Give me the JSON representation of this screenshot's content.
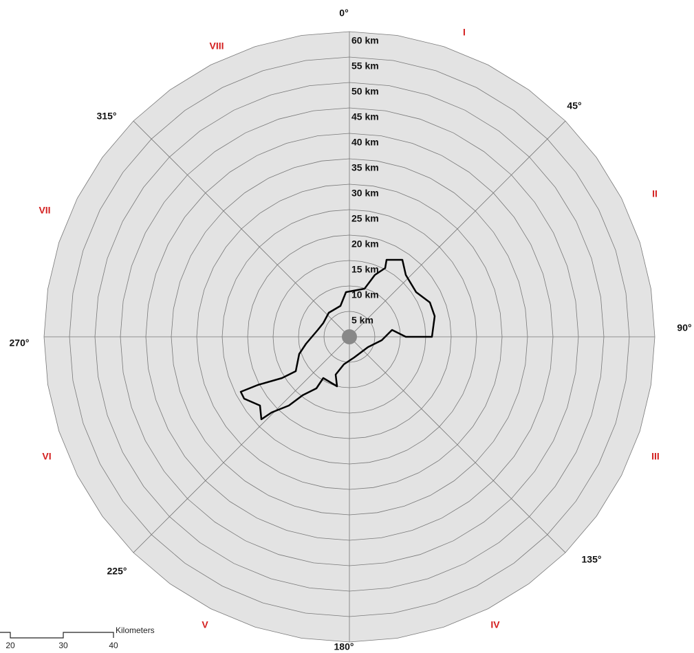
{
  "rings": [
    "5 km",
    "10 km",
    "15 km",
    "20 km",
    "25 km",
    "30 km",
    "35 km",
    "40 km",
    "45 km",
    "50 km",
    "55 km",
    "60 km"
  ],
  "bearings": [
    "0°",
    "45°",
    "90°",
    "135°",
    "180°",
    "225°",
    "270°",
    "315°"
  ],
  "sectors": [
    "I",
    "II",
    "III",
    "IV",
    "V",
    "VI",
    "VII",
    "VIII"
  ],
  "scale_bar": {
    "ticks": [
      "20",
      "30",
      "40"
    ],
    "unit": "Kilometers"
  }
}
